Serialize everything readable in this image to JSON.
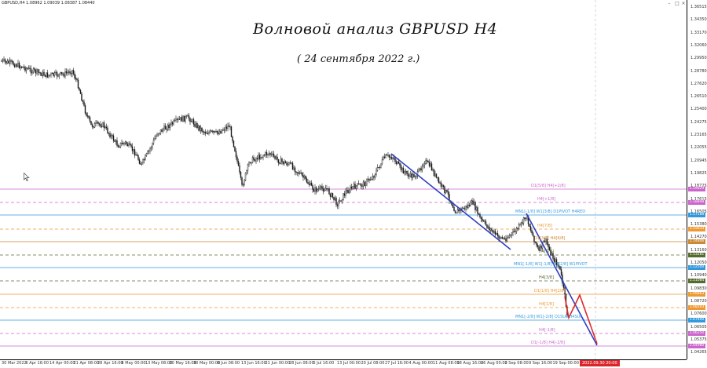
{
  "window": {
    "symbol_info": "GBPUSD,H4  1.08962 1.09039 1.08387 1.08440",
    "minimize_glyph": "–",
    "maximize_glyph": "□",
    "close_glyph": "×"
  },
  "annotations": {
    "title": "Волновой анализ GBPUSD H4",
    "subtitle": "( 24 сентября 2022 г.)"
  },
  "price_axis": {
    "ticks": [
      "1.36515",
      "1.34350",
      "1.33170",
      "1.32060",
      "1.29950",
      "1.28780",
      "1.27620",
      "1.26510",
      "1.25400",
      "1.24275",
      "1.23165",
      "1.22055",
      "1.20945",
      "1.19825",
      "1.18725",
      "1.17615",
      "1.16505",
      "1.15380",
      "1.14270",
      "1.13160",
      "1.12050",
      "1.10940",
      "1.09830",
      "1.08720",
      "1.07600",
      "1.06505",
      "1.05375",
      "1.04265"
    ]
  },
  "time_axis": {
    "ticks": [
      "30 Mar 2022",
      "6 Apr 16:00",
      "14 Apr 00:00",
      "21 Apr 08:00",
      "28 Apr 16:00",
      "6 May 00:00",
      "13 May 08:00",
      "20 May 16:00",
      "30 May 00:00",
      "6 Jun 08:00",
      "13 Jun 16:00",
      "21 Jun 00:00",
      "28 Jun 08:00",
      "5 Jul 16:00",
      "13 Jul 00:00",
      "20 Jul 08:00",
      "27 Jul 16:00",
      "4 Aug 00:00",
      "11 Aug 08:00",
      "18 Aug 16:00",
      "26 Aug 00:00",
      "2 Sep 08:00",
      "9 Sep 16:00",
      "19 Sep 00:00"
    ],
    "current_time_badge": "2022.09.30 20:00"
  },
  "levels": [
    {
      "label": "D1[5/8] H4[+2/8]",
      "badge": "1.19629",
      "color": "#cc66cc",
      "style": "solid"
    },
    {
      "label": "H4[+1/8]",
      "badge": "1.18848",
      "color": "#cc66cc",
      "style": "dashed"
    },
    {
      "label": "MN1[-1/8] W1[3/8] D1PIVOT H4RED",
      "badge": "1.17188",
      "color": "#3399dd",
      "style": "solid"
    },
    {
      "label": "H4[7/8]",
      "badge": "1.15633",
      "color": "#ee9933",
      "style": "dashed"
    },
    {
      "label": "D1[3/8] H4[6/8]",
      "badge": "1.14846",
      "color": "#cc8833",
      "style": "solid"
    },
    {
      "label": "H4[5/8]",
      "badge": "1.13281",
      "color": "#556b2f",
      "style": "dashed"
    },
    {
      "label": "MN1[-1/8] W1[-1/8] D1[2/8] W1PIVOT",
      "badge": "1.12500",
      "color": "#3399dd",
      "style": "solid"
    },
    {
      "label": "H4[3/8]",
      "badge": "1.11084",
      "color": "#556b2f",
      "style": "dashed"
    },
    {
      "label": "D1[1/8] H4[2/8]",
      "badge": "1.09863",
      "color": "#ee9933",
      "style": "solid"
    },
    {
      "label": "H4[1/8]",
      "badge": "1.08203",
      "color": "#ee9933",
      "style": "dashed"
    },
    {
      "label": "MN1[-2/8] W1[-2/8] D1SUP H4SUP",
      "badge": "1.07400",
      "color": "#3399dd",
      "style": "solid"
    },
    {
      "label": "H4[-1/8]",
      "badge": "1.06250",
      "color": "#cc66cc",
      "style": "dashed"
    },
    {
      "label": "D1[-1/8] H4[-2/8]",
      "badge": "1.04980",
      "color": "#cc66cc",
      "style": "solid"
    }
  ],
  "colors": {
    "candles": "#1a1a1a",
    "channel": "#2e3fbf",
    "forecast": "#e0282d",
    "grid_dash": "#bbbbbb"
  },
  "icons": {
    "cursor": "mouse-pointer-icon"
  }
}
